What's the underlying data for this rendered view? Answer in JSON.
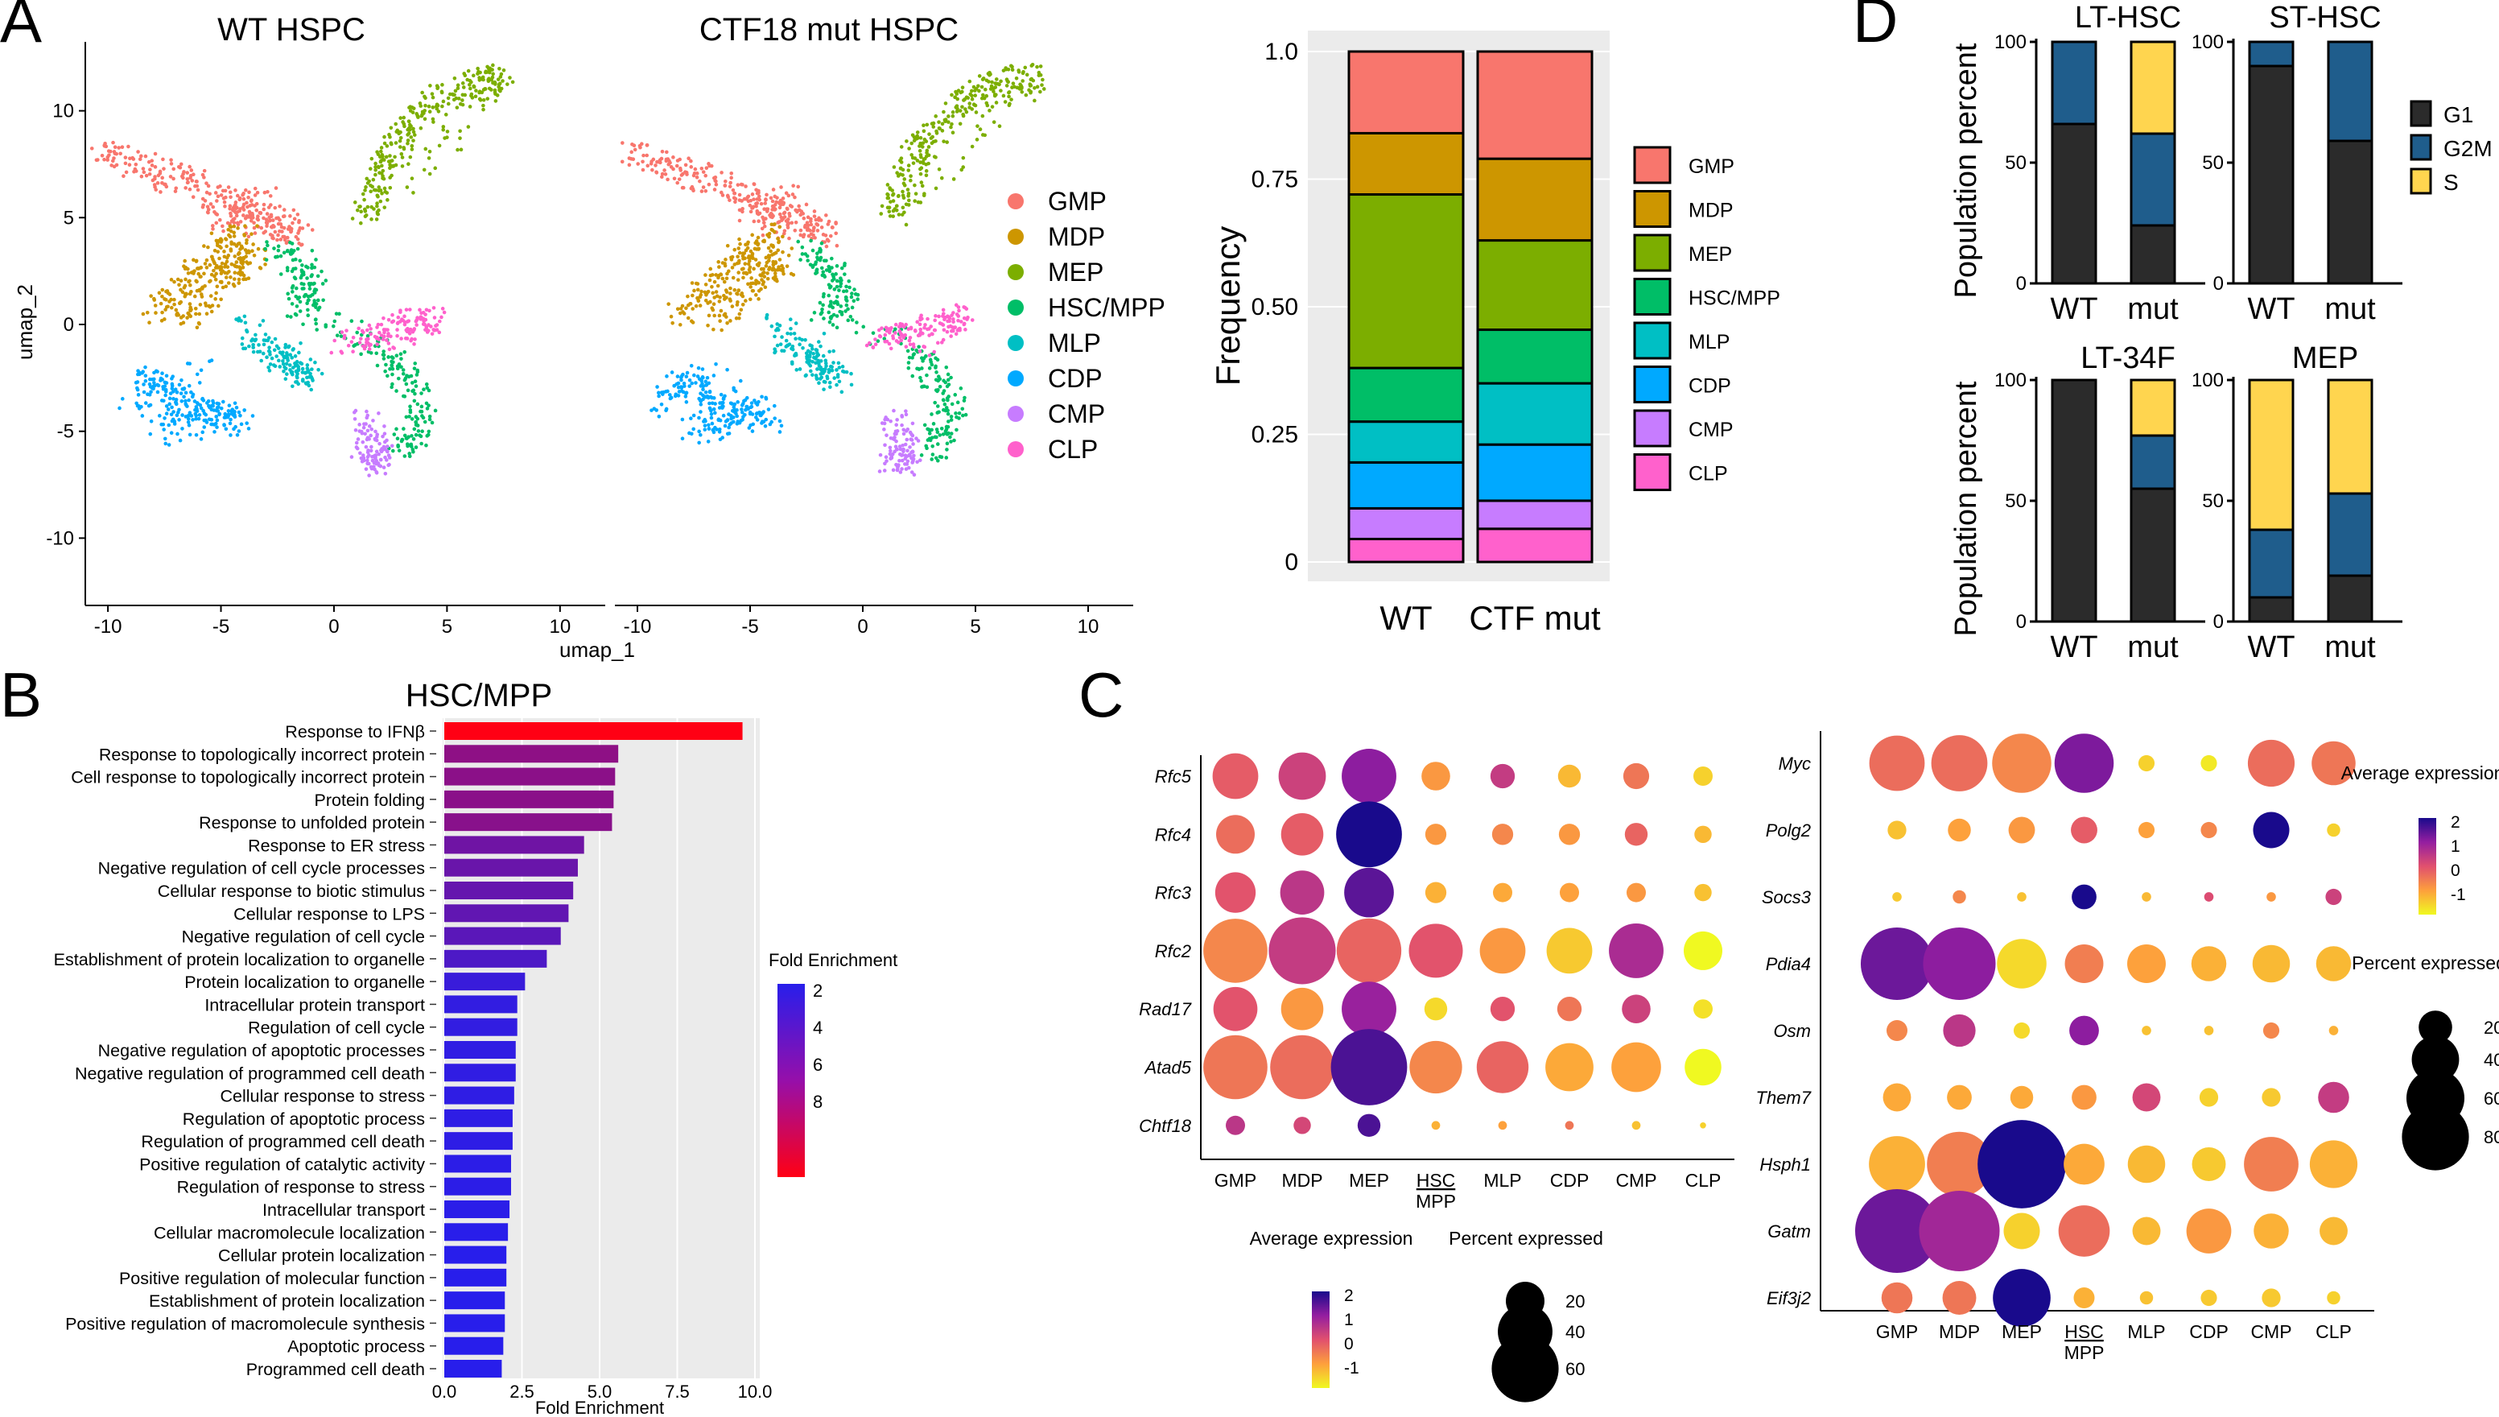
{
  "panel_letters": [
    "A",
    "B",
    "C",
    "D"
  ],
  "colors": {
    "GMP": "#F8766D",
    "MDP": "#CD9600",
    "MEP": "#7CAE00",
    "HSC/MPP": "#00BE67",
    "MLP": "#00BFC4",
    "CDP": "#00A9FF",
    "CMP": "#C77CFF",
    "CLP": "#FF61CC",
    "G1": "#2b2b2b",
    "G2M": "#1f5d8c",
    "S": "#ffd54f"
  },
  "chart_data": [
    {
      "id": "umap",
      "type": "scatter",
      "subplots": [
        "WT HSPC",
        "CTF18 mut HSPC"
      ],
      "xlabel": "umap_1",
      "ylabel": "umap_2",
      "xlim": [
        -11,
        12
      ],
      "ylim": [
        -13,
        13
      ],
      "xticks": [
        "-10",
        "-5",
        "0",
        "5",
        "10"
      ],
      "yticks": [
        "10",
        "5",
        "0",
        "-5",
        "-10"
      ],
      "legend": [
        "GMP",
        "MDP",
        "MEP",
        "HSC/MPP",
        "MLP",
        "CDP",
        "CMP",
        "CLP"
      ],
      "clusters": [
        {
          "name": "GMP",
          "pts": [
            [
              -10.5,
              8.2
            ],
            [
              -9,
              7.5
            ],
            [
              -7.5,
              7
            ],
            [
              -6,
              6.5
            ],
            [
              -4.8,
              5.8
            ],
            [
              -3.6,
              5.2
            ],
            [
              -2.5,
              4.8
            ],
            [
              -1.5,
              4.2
            ],
            [
              -5,
              5
            ],
            [
              -3,
              6
            ]
          ]
        },
        {
          "name": "MDP",
          "pts": [
            [
              -8,
              0.5
            ],
            [
              -7,
              1.5
            ],
            [
              -6,
              2.5
            ],
            [
              -5,
              3.5
            ],
            [
              -4,
              4.2
            ],
            [
              -6.5,
              0.2
            ],
            [
              -5.2,
              1.8
            ],
            [
              -4.2,
              2.6
            ],
            [
              -3.5,
              3
            ]
          ]
        },
        {
          "name": "MEP",
          "pts": [
            [
              1.3,
              5
            ],
            [
              1.8,
              6.2
            ],
            [
              2.2,
              7.5
            ],
            [
              2.8,
              8.5
            ],
            [
              3.6,
              9.5
            ],
            [
              4.6,
              10.5
            ],
            [
              5.8,
              11.1
            ],
            [
              6.8,
              11.4
            ],
            [
              7.6,
              11.6
            ],
            [
              2.5,
              6
            ]
          ]
        },
        {
          "name": "HSC/MPP",
          "pts": [
            [
              -2.5,
              3.5
            ],
            [
              -1.5,
              2.8
            ],
            [
              -0.8,
              1.5
            ],
            [
              -1.8,
              0.8
            ],
            [
              2,
              -1
            ],
            [
              3,
              -2.2
            ],
            [
              4,
              -3.5
            ],
            [
              3.6,
              -5
            ],
            [
              2.8,
              -6
            ]
          ]
        },
        {
          "name": "MLP",
          "pts": [
            [
              -3.8,
              -0.2
            ],
            [
              -3,
              -1.2
            ],
            [
              -2,
              -2
            ],
            [
              -1,
              -2.6
            ],
            [
              -2.5,
              -0.8
            ]
          ]
        },
        {
          "name": "CDP",
          "pts": [
            [
              -9,
              -4
            ],
            [
              -8,
              -2.5
            ],
            [
              -7,
              -3.2
            ],
            [
              -6,
              -4.5
            ],
            [
              -5,
              -3.8
            ],
            [
              -4.2,
              -4.6
            ],
            [
              -7.5,
              -5
            ],
            [
              -6,
              -2.2
            ]
          ]
        },
        {
          "name": "CMP",
          "pts": [
            [
              1.4,
              -4.5
            ],
            [
              1.8,
              -5.5
            ],
            [
              2.1,
              -6.5
            ],
            [
              1.2,
              -6.2
            ]
          ]
        },
        {
          "name": "CLP",
          "pts": [
            [
              0.5,
              -0.8
            ],
            [
              1.8,
              -0.5
            ],
            [
              3.2,
              0
            ],
            [
              4.5,
              0.3
            ],
            [
              2.6,
              -1
            ]
          ]
        }
      ]
    },
    {
      "id": "frequency",
      "type": "bar",
      "stacked": true,
      "categories": [
        "WT",
        "CTF mut"
      ],
      "ylabel": "Frequency",
      "yticks": [
        "0",
        "0.25",
        "0.50",
        "0.75",
        "1.0"
      ],
      "ylim": [
        0,
        1
      ],
      "series": [
        {
          "name": "CLP",
          "values": [
            0.045,
            0.065
          ]
        },
        {
          "name": "CMP",
          "values": [
            0.06,
            0.055
          ]
        },
        {
          "name": "CDP",
          "values": [
            0.09,
            0.11
          ]
        },
        {
          "name": "MLP",
          "values": [
            0.08,
            0.12
          ]
        },
        {
          "name": "HSC/MPP",
          "values": [
            0.105,
            0.105
          ]
        },
        {
          "name": "MEP",
          "values": [
            0.34,
            0.175
          ]
        },
        {
          "name": "MDP",
          "values": [
            0.12,
            0.16
          ]
        },
        {
          "name": "GMP",
          "values": [
            0.16,
            0.21
          ]
        }
      ],
      "legend": [
        "GMP",
        "MDP",
        "MEP",
        "HSC/MPP",
        "MLP",
        "CDP",
        "CMP",
        "CLP"
      ]
    },
    {
      "id": "cell_cycle",
      "type": "bar",
      "stacked": true,
      "ylabel": "Population percent",
      "categories": [
        "WT",
        "mut"
      ],
      "legend": [
        "G1",
        "G2M",
        "S"
      ],
      "yticks": [
        "0",
        "50",
        "100"
      ],
      "panels": [
        {
          "title": "LT-HSC",
          "G1": [
            66,
            24
          ],
          "G2M": [
            34,
            38
          ],
          "S": [
            0,
            38
          ]
        },
        {
          "title": "ST-HSC",
          "G1": [
            90,
            59
          ],
          "G2M": [
            10,
            41
          ],
          "S": [
            0,
            0
          ]
        },
        {
          "title": "LT-34F",
          "G1": [
            100,
            55
          ],
          "G2M": [
            0,
            22
          ],
          "S": [
            0,
            23
          ]
        },
        {
          "title": "MEP",
          "G1": [
            10,
            19
          ],
          "G2M": [
            28,
            34
          ],
          "S": [
            62,
            47
          ]
        }
      ]
    },
    {
      "id": "go_enrichment",
      "type": "bar",
      "orientation": "horizontal",
      "title": "HSC/MPP",
      "xlabel": "Fold Enrichment",
      "xticks": [
        "0.0",
        "2.5",
        "5.0",
        "7.5",
        "10.0"
      ],
      "xlim": [
        0,
        10
      ],
      "legend_title": "Fold Enrichment",
      "legend_ticks": [
        "2",
        "4",
        "6",
        "8"
      ],
      "categories": [
        "Response to IFNβ",
        "Response to topologically incorrect protein",
        "Cell response to topologically incorrect protein",
        "Protein folding",
        "Response to unfolded protein",
        "Response to ER stress",
        "Negative regulation of cell cycle processes",
        "Cellular response to biotic stimulus",
        "Cellular response to LPS",
        "Negative regulation of cell cycle",
        "Establishment of protein localization to organelle",
        "Protein localization to organelle",
        "Intracellular protein transport",
        "Regulation of cell cycle",
        "Negative regulation of apoptotic processes",
        "Negative regulation of programmed cell death",
        "Cellular response to stress",
        "Regulation of apoptotic process",
        "Regulation of programmed cell death",
        "Positive regulation of catalytic activity",
        "Regulation of response to stress",
        "Intracellular transport",
        "Cellular macromolecule localization",
        "Cellular protein localization",
        "Positive regulation of molecular function",
        "Establishment of protein localization",
        "Positive regulation of macromolecule synthesis",
        "Apoptotic process",
        "Programmed cell death"
      ],
      "values": [
        9.6,
        5.6,
        5.5,
        5.45,
        5.4,
        4.5,
        4.3,
        4.15,
        4.0,
        3.75,
        3.3,
        2.6,
        2.35,
        2.35,
        2.3,
        2.3,
        2.25,
        2.2,
        2.2,
        2.15,
        2.15,
        2.1,
        2.05,
        2.0,
        2.0,
        1.95,
        1.95,
        1.9,
        1.85
      ]
    },
    {
      "id": "dotplot_left",
      "type": "scatter",
      "subtype": "dotplot",
      "genes": [
        "Rfc5",
        "Rfc4",
        "Rfc3",
        "Rfc2",
        "Rad17",
        "Atad5",
        "Chtf18"
      ],
      "clusters": [
        "GMP",
        "MDP",
        "MEP",
        "HSC",
        "MLP",
        "CDP",
        "CMP",
        "CLP"
      ],
      "cluster_sub": [
        "",
        "",
        "",
        "MPP",
        "",
        "",
        "",
        ""
      ],
      "pct": [
        [
          28,
          30,
          40,
          11,
          8,
          7,
          9,
          5
        ],
        [
          20,
          24,
          58,
          6,
          6,
          6,
          7,
          4
        ],
        [
          22,
          26,
          33,
          6,
          5,
          5,
          5,
          4
        ],
        [
          55,
          60,
          56,
          39,
          28,
          28,
          40,
          20
        ],
        [
          26,
          24,
          40,
          7,
          8,
          8,
          11,
          5
        ],
        [
          55,
          55,
          78,
          37,
          36,
          31,
          33,
          18
        ],
        [
          5,
          4,
          7,
          1,
          1,
          1,
          1,
          0.5
        ]
      ],
      "expr": [
        [
          0.4,
          0.8,
          1.5,
          -0.3,
          0.9,
          -0.7,
          0.1,
          -1.0
        ],
        [
          0.2,
          0.4,
          2.3,
          -0.3,
          -0.1,
          -0.3,
          0.3,
          -0.7
        ],
        [
          0.5,
          1.0,
          1.8,
          -0.6,
          -0.5,
          -0.4,
          -0.3,
          -0.8
        ],
        [
          -0.1,
          0.9,
          0.3,
          0.5,
          -0.3,
          -0.9,
          1.2,
          -1.6
        ],
        [
          0.5,
          -0.3,
          1.4,
          -1.1,
          0.5,
          0.1,
          0.8,
          -1.2
        ],
        [
          0.1,
          0.2,
          1.9,
          -0.1,
          0.3,
          -0.5,
          -0.4,
          -1.6
        ],
        [
          1.0,
          0.7,
          1.9,
          -0.6,
          -0.4,
          0.1,
          -0.8,
          -1.0
        ]
      ],
      "legend": {
        "expr_title": "Average expression",
        "expr_ticks": [
          "2",
          "1",
          "0",
          "-1"
        ],
        "pct_title": "Percent expressed",
        "pct_ticks": [
          "20",
          "40",
          "60"
        ]
      }
    },
    {
      "id": "dotplot_right",
      "type": "scatter",
      "subtype": "dotplot",
      "genes": [
        "Myc",
        "Polg2",
        "Socs3",
        "Pdia4",
        "Osm",
        "Them7",
        "Hsph1",
        "Gatm",
        "Eif3j2"
      ],
      "clusters": [
        "GMP",
        "MDP",
        "MEP",
        "HSC",
        "MLP",
        "CDP",
        "CMP",
        "CLP"
      ],
      "cluster_sub": [
        "",
        "",
        "",
        "MPP",
        "",
        "",
        "",
        ""
      ],
      "pct": [
        [
          35,
          36,
          40,
          40,
          3,
          3,
          25,
          22
        ],
        [
          4,
          6,
          8,
          8,
          3,
          3,
          15,
          2
        ],
        [
          1,
          2,
          1,
          7,
          1,
          1,
          1,
          3
        ],
        [
          60,
          60,
          28,
          17,
          17,
          14,
          16,
          14
        ],
        [
          5,
          12,
          3,
          10,
          1,
          1,
          3,
          1
        ],
        [
          9,
          7,
          6,
          7,
          9,
          4,
          4,
          11
        ],
        [
          36,
          48,
          89,
          19,
          16,
          13,
          34,
          26
        ],
        [
          80,
          74,
          15,
          30,
          9,
          23,
          14,
          9
        ],
        [
          11,
          13,
          38,
          5,
          2,
          3,
          4,
          2
        ]
      ],
      "expr": [
        [
          0.2,
          0.2,
          -0.1,
          1.6,
          -1.0,
          -1.3,
          0.2,
          0.1
        ],
        [
          -0.8,
          -0.4,
          -0.3,
          0.4,
          -0.4,
          -0.1,
          2.3,
          -1.0
        ],
        [
          -0.9,
          -0.1,
          -0.8,
          2.2,
          -0.7,
          0.6,
          -0.3,
          0.8
        ],
        [
          1.7,
          1.5,
          -1.1,
          0.0,
          -0.4,
          -0.6,
          -0.7,
          -0.7
        ],
        [
          -0.1,
          1.0,
          -1.1,
          1.5,
          -0.8,
          -0.8,
          -0.1,
          -0.6
        ],
        [
          -0.5,
          -0.5,
          -0.5,
          -0.3,
          0.7,
          -1.0,
          -0.9,
          0.9
        ],
        [
          -0.6,
          0.0,
          2.2,
          -0.5,
          -0.7,
          -0.9,
          0.0,
          -0.6
        ],
        [
          1.7,
          1.3,
          -1.0,
          0.2,
          -0.7,
          -0.3,
          -0.6,
          -0.7
        ],
        [
          0.1,
          0.1,
          2.2,
          -0.6,
          -0.8,
          -0.9,
          -0.9,
          -1.0
        ]
      ],
      "legend": {
        "expr_title": "Average expression",
        "expr_ticks": [
          "2",
          "1",
          "0",
          "-1"
        ],
        "pct_title": "Percent expressed",
        "pct_ticks": [
          "20",
          "40",
          "60",
          "80"
        ]
      }
    }
  ]
}
